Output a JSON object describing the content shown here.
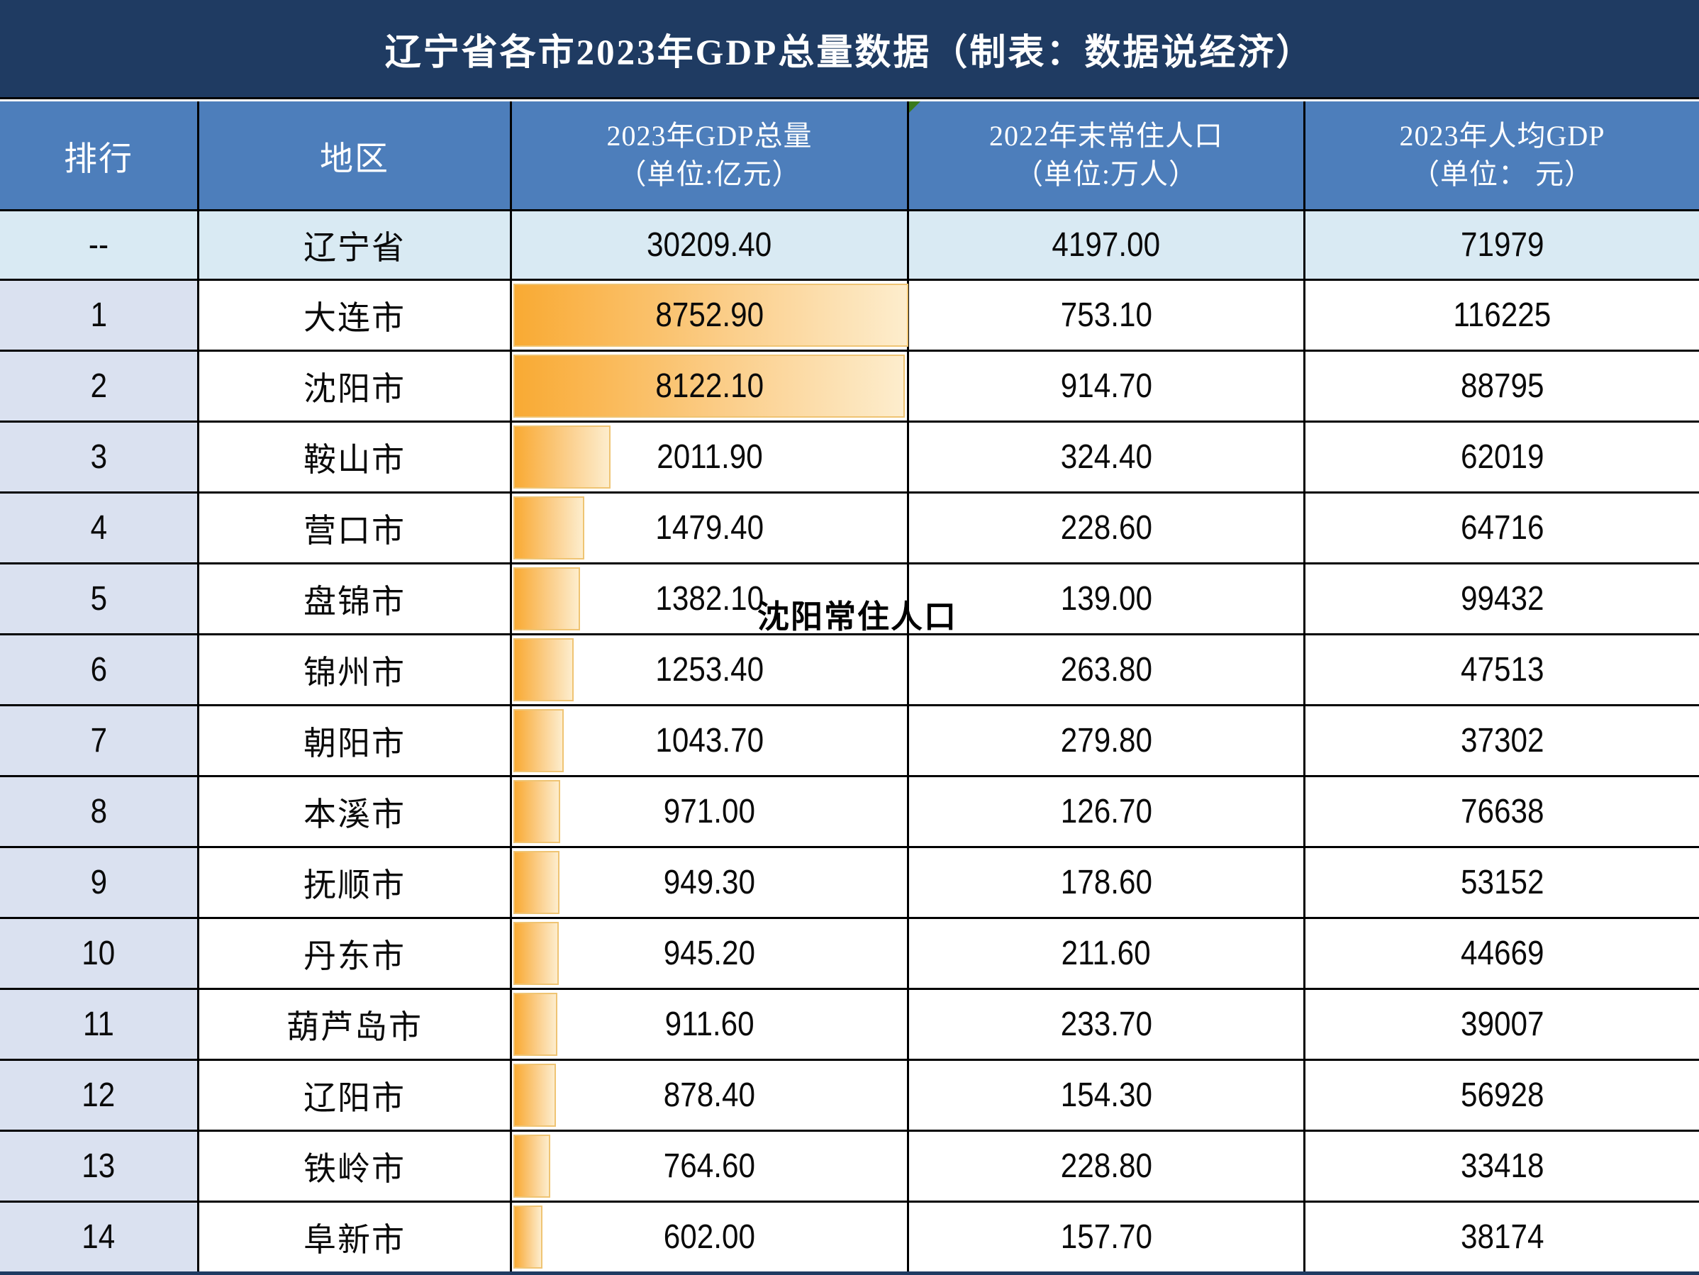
{
  "title": "辽宁省各市2023年GDP总量数据（制表：数据说经济）",
  "watermark": "沈阳常住人口",
  "header": {
    "rank": "排行",
    "region": "地区",
    "gdp_line1": "2023年GDP总量",
    "gdp_line2": "（单位:亿元）",
    "pop_line1": "2022年末常住人口",
    "pop_line2": "（单位:万人）",
    "pc_line1": "2023年人均GDP",
    "pc_line2": "（单位： 元）"
  },
  "province_row": {
    "rank": "--",
    "region": "辽宁省",
    "gdp": "30209.40",
    "pop": "4197.00",
    "pc": "71979"
  },
  "colors": {
    "title_bg": "#1f3b62",
    "header_bg": "#4d7ebb",
    "province_bg": "#d9eaf3",
    "rank_bg": "#dae1f0",
    "grid_line": "#000000",
    "bar_start": "#f9aa33",
    "bar_end": "#fdedcd",
    "bar_border": "#efc473",
    "triangle": "#3b7a1e",
    "strip": "#1f3b62"
  },
  "chart_data": {
    "type": "table",
    "title": "辽宁省各市2023年GDP总量数据（制表：数据说经济）",
    "columns": [
      "排行",
      "地区",
      "2023年GDP总量（单位:亿元）",
      "2022年末常住人口（单位:万人）",
      "2023年人均GDP（单位：元）"
    ],
    "bar_column": "2023年GDP总量",
    "bar_scale_max": 8200,
    "province_total": {
      "region": "辽宁省",
      "gdp": 30209.4,
      "population": 4197.0,
      "gdp_per_capita": 71979
    },
    "rows": [
      {
        "rank": "1",
        "region": "大连市",
        "gdp": "8752.90",
        "population": "753.10",
        "gdp_per_capita": "116225"
      },
      {
        "rank": "2",
        "region": "沈阳市",
        "gdp": "8122.10",
        "population": "914.70",
        "gdp_per_capita": "88795"
      },
      {
        "rank": "3",
        "region": "鞍山市",
        "gdp": "2011.90",
        "population": "324.40",
        "gdp_per_capita": "62019"
      },
      {
        "rank": "4",
        "region": "营口市",
        "gdp": "1479.40",
        "population": "228.60",
        "gdp_per_capita": "64716"
      },
      {
        "rank": "5",
        "region": "盘锦市",
        "gdp": "1382.10",
        "population": "139.00",
        "gdp_per_capita": "99432"
      },
      {
        "rank": "6",
        "region": "锦州市",
        "gdp": "1253.40",
        "population": "263.80",
        "gdp_per_capita": "47513"
      },
      {
        "rank": "7",
        "region": "朝阳市",
        "gdp": "1043.70",
        "population": "279.80",
        "gdp_per_capita": "37302"
      },
      {
        "rank": "8",
        "region": "本溪市",
        "gdp": "971.00",
        "population": "126.70",
        "gdp_per_capita": "76638"
      },
      {
        "rank": "9",
        "region": "抚顺市",
        "gdp": "949.30",
        "population": "178.60",
        "gdp_per_capita": "53152"
      },
      {
        "rank": "10",
        "region": "丹东市",
        "gdp": "945.20",
        "population": "211.60",
        "gdp_per_capita": "44669"
      },
      {
        "rank": "11",
        "region": "葫芦岛市",
        "gdp": "911.60",
        "population": "233.70",
        "gdp_per_capita": "39007"
      },
      {
        "rank": "12",
        "region": "辽阳市",
        "gdp": "878.40",
        "population": "154.30",
        "gdp_per_capita": "56928"
      },
      {
        "rank": "13",
        "region": "铁岭市",
        "gdp": "764.60",
        "population": "228.80",
        "gdp_per_capita": "33418"
      },
      {
        "rank": "14",
        "region": "阜新市",
        "gdp": "602.00",
        "population": "157.70",
        "gdp_per_capita": "38174"
      }
    ]
  }
}
